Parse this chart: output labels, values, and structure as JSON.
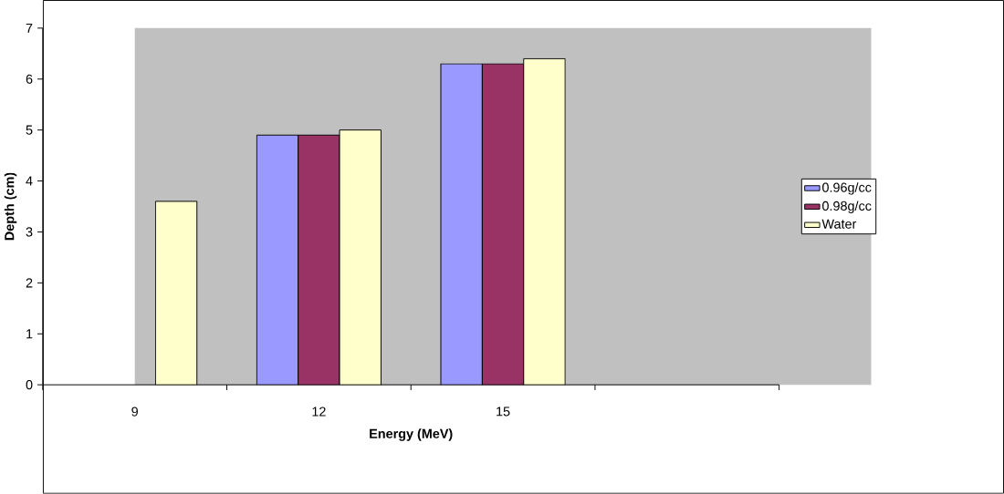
{
  "chart_data": {
    "type": "bar",
    "xlabel": "Energy (MeV)",
    "ylabel": "Depth (cm)",
    "categories": [
      "9",
      "12",
      "15",
      null
    ],
    "series": [
      {
        "name": "0.96g/cc",
        "color": "#9999ff",
        "values": [
          null,
          4.9,
          6.3,
          null
        ]
      },
      {
        "name": "0.98g/cc",
        "color": "#993366",
        "values": [
          null,
          4.9,
          6.3,
          null
        ]
      },
      {
        "name": "Water",
        "color": "#ffffcc",
        "values": [
          3.6,
          5.0,
          6.4,
          null
        ]
      }
    ],
    "ylim": [
      0,
      7
    ],
    "yticks": [
      0,
      1,
      2,
      3,
      4,
      5,
      6,
      7
    ],
    "grid": false,
    "legend": "right"
  }
}
